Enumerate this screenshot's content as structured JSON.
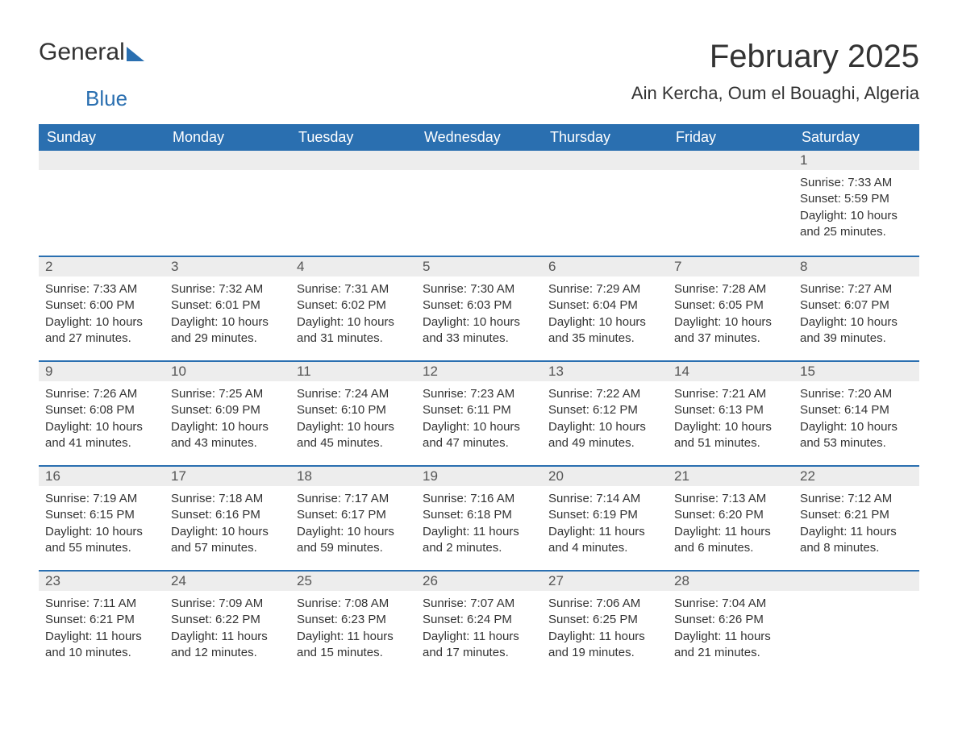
{
  "logo": {
    "general": "General",
    "blue": "Blue"
  },
  "title": "February 2025",
  "location": "Ain Kercha, Oum el Bouaghi, Algeria",
  "colors": {
    "header_bg": "#2a6fb0",
    "header_text": "#ffffff",
    "daybar_bg": "#ededed",
    "daybar_border": "#2a6fb0",
    "body_text": "#333333",
    "daynum_text": "#555555",
    "logo_general": "#333333",
    "logo_blue": "#2a6fb0",
    "background": "#ffffff"
  },
  "fonts": {
    "title_size_pt": 30,
    "location_size_pt": 17,
    "header_size_pt": 14,
    "cell_size_pt": 11
  },
  "layout": {
    "columns": 7,
    "rows": 5,
    "first_day_column_index": 6
  },
  "weekdays": [
    "Sunday",
    "Monday",
    "Tuesday",
    "Wednesday",
    "Thursday",
    "Friday",
    "Saturday"
  ],
  "days": [
    {
      "n": "1",
      "sunrise": "Sunrise: 7:33 AM",
      "sunset": "Sunset: 5:59 PM",
      "daylight": "Daylight: 10 hours and 25 minutes."
    },
    {
      "n": "2",
      "sunrise": "Sunrise: 7:33 AM",
      "sunset": "Sunset: 6:00 PM",
      "daylight": "Daylight: 10 hours and 27 minutes."
    },
    {
      "n": "3",
      "sunrise": "Sunrise: 7:32 AM",
      "sunset": "Sunset: 6:01 PM",
      "daylight": "Daylight: 10 hours and 29 minutes."
    },
    {
      "n": "4",
      "sunrise": "Sunrise: 7:31 AM",
      "sunset": "Sunset: 6:02 PM",
      "daylight": "Daylight: 10 hours and 31 minutes."
    },
    {
      "n": "5",
      "sunrise": "Sunrise: 7:30 AM",
      "sunset": "Sunset: 6:03 PM",
      "daylight": "Daylight: 10 hours and 33 minutes."
    },
    {
      "n": "6",
      "sunrise": "Sunrise: 7:29 AM",
      "sunset": "Sunset: 6:04 PM",
      "daylight": "Daylight: 10 hours and 35 minutes."
    },
    {
      "n": "7",
      "sunrise": "Sunrise: 7:28 AM",
      "sunset": "Sunset: 6:05 PM",
      "daylight": "Daylight: 10 hours and 37 minutes."
    },
    {
      "n": "8",
      "sunrise": "Sunrise: 7:27 AM",
      "sunset": "Sunset: 6:07 PM",
      "daylight": "Daylight: 10 hours and 39 minutes."
    },
    {
      "n": "9",
      "sunrise": "Sunrise: 7:26 AM",
      "sunset": "Sunset: 6:08 PM",
      "daylight": "Daylight: 10 hours and 41 minutes."
    },
    {
      "n": "10",
      "sunrise": "Sunrise: 7:25 AM",
      "sunset": "Sunset: 6:09 PM",
      "daylight": "Daylight: 10 hours and 43 minutes."
    },
    {
      "n": "11",
      "sunrise": "Sunrise: 7:24 AM",
      "sunset": "Sunset: 6:10 PM",
      "daylight": "Daylight: 10 hours and 45 minutes."
    },
    {
      "n": "12",
      "sunrise": "Sunrise: 7:23 AM",
      "sunset": "Sunset: 6:11 PM",
      "daylight": "Daylight: 10 hours and 47 minutes."
    },
    {
      "n": "13",
      "sunrise": "Sunrise: 7:22 AM",
      "sunset": "Sunset: 6:12 PM",
      "daylight": "Daylight: 10 hours and 49 minutes."
    },
    {
      "n": "14",
      "sunrise": "Sunrise: 7:21 AM",
      "sunset": "Sunset: 6:13 PM",
      "daylight": "Daylight: 10 hours and 51 minutes."
    },
    {
      "n": "15",
      "sunrise": "Sunrise: 7:20 AM",
      "sunset": "Sunset: 6:14 PM",
      "daylight": "Daylight: 10 hours and 53 minutes."
    },
    {
      "n": "16",
      "sunrise": "Sunrise: 7:19 AM",
      "sunset": "Sunset: 6:15 PM",
      "daylight": "Daylight: 10 hours and 55 minutes."
    },
    {
      "n": "17",
      "sunrise": "Sunrise: 7:18 AM",
      "sunset": "Sunset: 6:16 PM",
      "daylight": "Daylight: 10 hours and 57 minutes."
    },
    {
      "n": "18",
      "sunrise": "Sunrise: 7:17 AM",
      "sunset": "Sunset: 6:17 PM",
      "daylight": "Daylight: 10 hours and 59 minutes."
    },
    {
      "n": "19",
      "sunrise": "Sunrise: 7:16 AM",
      "sunset": "Sunset: 6:18 PM",
      "daylight": "Daylight: 11 hours and 2 minutes."
    },
    {
      "n": "20",
      "sunrise": "Sunrise: 7:14 AM",
      "sunset": "Sunset: 6:19 PM",
      "daylight": "Daylight: 11 hours and 4 minutes."
    },
    {
      "n": "21",
      "sunrise": "Sunrise: 7:13 AM",
      "sunset": "Sunset: 6:20 PM",
      "daylight": "Daylight: 11 hours and 6 minutes."
    },
    {
      "n": "22",
      "sunrise": "Sunrise: 7:12 AM",
      "sunset": "Sunset: 6:21 PM",
      "daylight": "Daylight: 11 hours and 8 minutes."
    },
    {
      "n": "23",
      "sunrise": "Sunrise: 7:11 AM",
      "sunset": "Sunset: 6:21 PM",
      "daylight": "Daylight: 11 hours and 10 minutes."
    },
    {
      "n": "24",
      "sunrise": "Sunrise: 7:09 AM",
      "sunset": "Sunset: 6:22 PM",
      "daylight": "Daylight: 11 hours and 12 minutes."
    },
    {
      "n": "25",
      "sunrise": "Sunrise: 7:08 AM",
      "sunset": "Sunset: 6:23 PM",
      "daylight": "Daylight: 11 hours and 15 minutes."
    },
    {
      "n": "26",
      "sunrise": "Sunrise: 7:07 AM",
      "sunset": "Sunset: 6:24 PM",
      "daylight": "Daylight: 11 hours and 17 minutes."
    },
    {
      "n": "27",
      "sunrise": "Sunrise: 7:06 AM",
      "sunset": "Sunset: 6:25 PM",
      "daylight": "Daylight: 11 hours and 19 minutes."
    },
    {
      "n": "28",
      "sunrise": "Sunrise: 7:04 AM",
      "sunset": "Sunset: 6:26 PM",
      "daylight": "Daylight: 11 hours and 21 minutes."
    }
  ]
}
